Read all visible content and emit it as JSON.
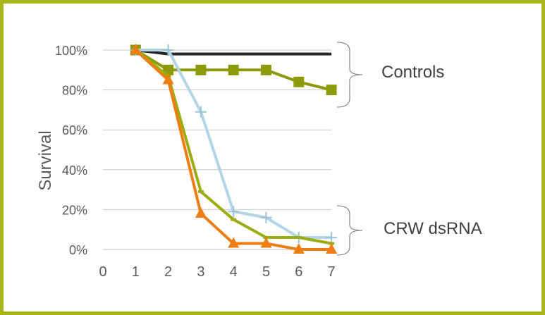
{
  "chart_data": {
    "type": "line",
    "ylabel": "Survival",
    "xlabel": "",
    "x": [
      1,
      2,
      3,
      4,
      5,
      6,
      7
    ],
    "xlim": [
      0,
      7
    ],
    "x_ticks": [
      "0",
      "1",
      "2",
      "3",
      "4",
      "5",
      "6",
      "7"
    ],
    "ylim": [
      0,
      100
    ],
    "y_ticks": [
      "0%",
      "20%",
      "40%",
      "60%",
      "80%",
      "100%"
    ],
    "y_tick_values": [
      0,
      20,
      40,
      60,
      80,
      100
    ],
    "grid": "horizontal",
    "series": [
      {
        "values": [
          100,
          98,
          98,
          98,
          98,
          98,
          98
        ],
        "color": "#262626",
        "marker": "none"
      },
      {
        "values": [
          100,
          90,
          90,
          90,
          90,
          84,
          80
        ],
        "color": "#8c9a0c",
        "marker": "square"
      },
      {
        "values": [
          100,
          100,
          69,
          19,
          16,
          6,
          6
        ],
        "color": "#b4d5e6",
        "marker": "plus"
      },
      {
        "values": [
          100,
          87,
          29,
          15,
          6,
          6,
          3
        ],
        "color": "#9cac12",
        "marker": "dash"
      },
      {
        "values": [
          100,
          85,
          18,
          3,
          3,
          0,
          0
        ],
        "color": "#ee7d14",
        "marker": "triangle"
      }
    ],
    "annotations": [
      {
        "label": "Controls",
        "series_group": [
          0,
          1
        ]
      },
      {
        "label": "CRW dsRNA",
        "series_group": [
          2,
          3,
          4
        ]
      }
    ]
  },
  "colors": {
    "frame": "#a9b51a",
    "grid": "#c9c9c9",
    "axis": "#bfbfbf",
    "text": "#595959"
  }
}
